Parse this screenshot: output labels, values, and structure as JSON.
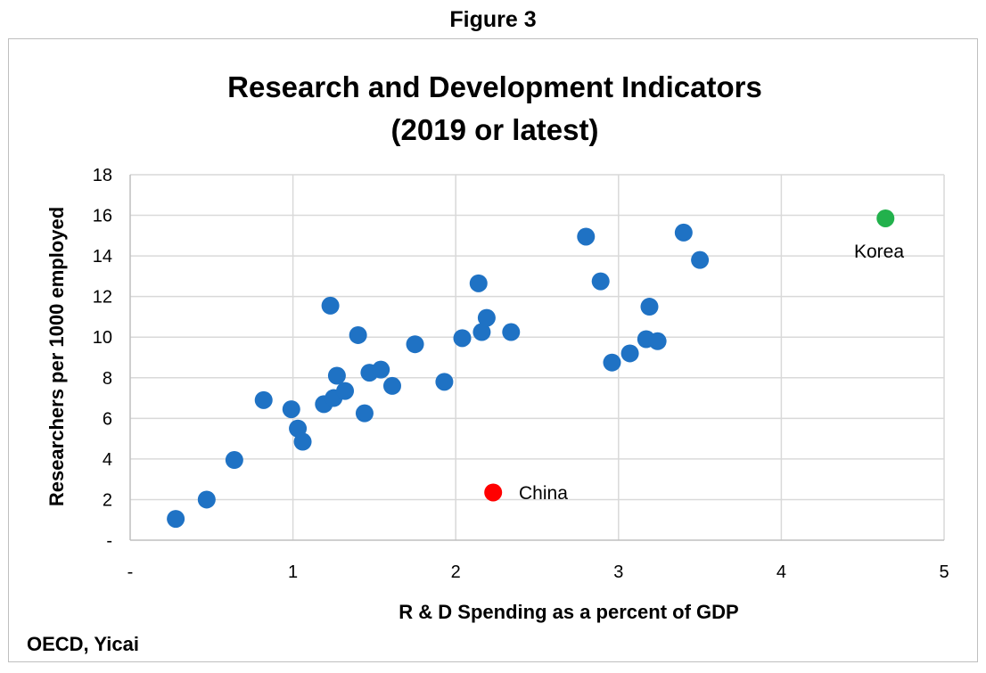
{
  "figure_label": "Figure 3",
  "source": "OECD, Yicai",
  "chart_data": {
    "type": "scatter",
    "title": "Research and Development Indicators",
    "subtitle": "(2019 or latest)",
    "xlabel": "R & D Spending as a percent of GDP",
    "ylabel": "Researchers per 1000 employed",
    "xlim": [
      0,
      5
    ],
    "ylim": [
      0,
      18
    ],
    "x_ticks": [
      0,
      1,
      2,
      3,
      4,
      5
    ],
    "x_tick_labels": [
      "-",
      "1",
      "2",
      "3",
      "4",
      "5"
    ],
    "y_ticks": [
      0,
      2,
      4,
      6,
      8,
      10,
      12,
      14,
      16,
      18
    ],
    "y_tick_labels": [
      "-",
      "2",
      "4",
      "6",
      "8",
      "10",
      "12",
      "14",
      "16",
      "18"
    ],
    "grid": true,
    "colors": {
      "default": "#1f72c4",
      "china": "#ff0000",
      "korea": "#22b14c",
      "grid": "#d9d9d9"
    },
    "series": [
      {
        "color": "#1f72c4",
        "points": [
          [
            0.28,
            1.05
          ],
          [
            0.47,
            2.0
          ],
          [
            0.64,
            3.95
          ],
          [
            0.82,
            6.9
          ],
          [
            0.99,
            6.45
          ],
          [
            1.03,
            5.5
          ],
          [
            1.06,
            4.85
          ],
          [
            1.19,
            6.7
          ],
          [
            1.23,
            11.55
          ],
          [
            1.25,
            7.0
          ],
          [
            1.27,
            8.1
          ],
          [
            1.32,
            7.35
          ],
          [
            1.4,
            10.1
          ],
          [
            1.44,
            6.25
          ],
          [
            1.47,
            8.25
          ],
          [
            1.54,
            8.4
          ],
          [
            1.61,
            7.6
          ],
          [
            1.75,
            9.65
          ],
          [
            1.93,
            7.8
          ],
          [
            2.04,
            9.95
          ],
          [
            2.14,
            12.65
          ],
          [
            2.16,
            10.25
          ],
          [
            2.19,
            10.95
          ],
          [
            2.34,
            10.25
          ],
          [
            2.8,
            14.95
          ],
          [
            2.89,
            12.75
          ],
          [
            2.96,
            8.75
          ],
          [
            3.07,
            9.2
          ],
          [
            3.17,
            9.9
          ],
          [
            3.19,
            11.5
          ],
          [
            3.24,
            9.8
          ],
          [
            3.4,
            15.15
          ],
          [
            3.5,
            13.8
          ]
        ]
      },
      {
        "name": "China",
        "color": "#ff0000",
        "points": [
          [
            2.23,
            2.35
          ]
        ]
      },
      {
        "name": "Korea",
        "color": "#22b14c",
        "points": [
          [
            4.64,
            15.85
          ]
        ]
      }
    ],
    "annotations": [
      "China",
      "Korea"
    ]
  }
}
